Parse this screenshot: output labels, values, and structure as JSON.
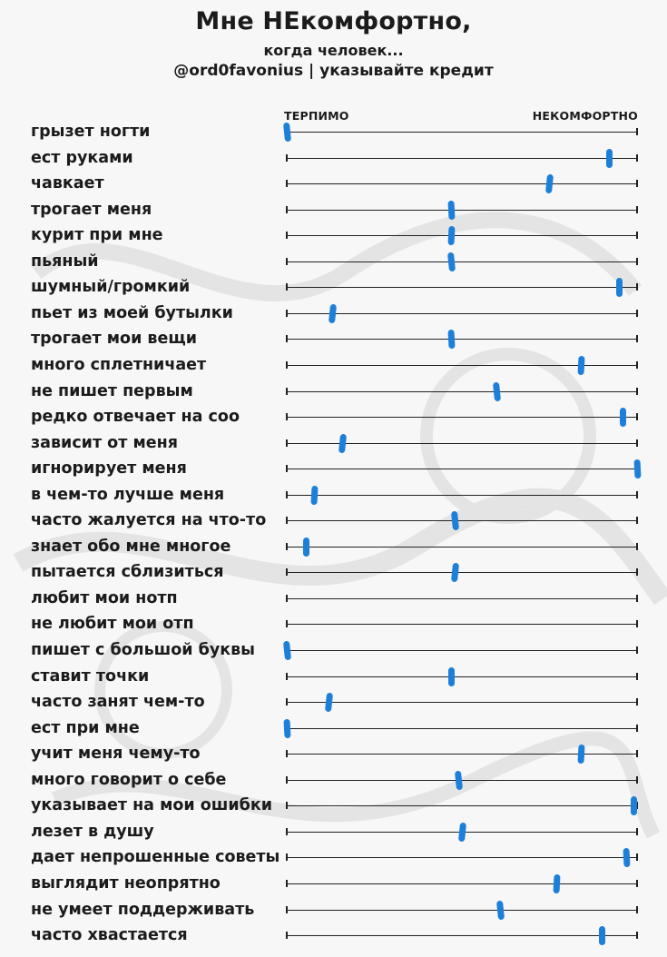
{
  "header": {
    "title": "Мне НЕкомфортно,",
    "subtitle": "когда человек...",
    "credit": "@ord0favonius | указывайте кредит"
  },
  "scale": {
    "min_label": "ТЕРПИМО",
    "max_label": "НЕКОМФОРТНО"
  },
  "colors": {
    "marker": "#1e7fd9",
    "line": "#222222",
    "background": "#f7f7f7"
  },
  "items": [
    {
      "label": "грызет ногти",
      "value": 0.0
    },
    {
      "label": "ест руками",
      "value": 0.92
    },
    {
      "label": "чавкает",
      "value": 0.75
    },
    {
      "label": "трогает меня",
      "value": 0.47
    },
    {
      "label": "курит при мне",
      "value": 0.47
    },
    {
      "label": "пьяный",
      "value": 0.47
    },
    {
      "label": "шумный/громкий",
      "value": 0.95
    },
    {
      "label": "пьет из моей бутылки",
      "value": 0.13
    },
    {
      "label": "трогает мои вещи",
      "value": 0.47
    },
    {
      "label": "много сплетничает",
      "value": 0.84
    },
    {
      "label": "не пишет первым",
      "value": 0.6
    },
    {
      "label": "редко отвечает на соо",
      "value": 0.96
    },
    {
      "label": "зависит от меня",
      "value": 0.16
    },
    {
      "label": "игнорирует меня",
      "value": 1.0
    },
    {
      "label": "в чем-то лучше меня",
      "value": 0.08
    },
    {
      "label": "часто жалуется на что-то",
      "value": 0.48
    },
    {
      "label": "знает обо мне многое",
      "value": 0.055
    },
    {
      "label": "пытается сблизиться",
      "value": 0.48
    },
    {
      "label": "любит мои нотп",
      "value": null
    },
    {
      "label": "не любит мои отп",
      "value": null
    },
    {
      "label": "пишет с большой буквы",
      "value": 0.0
    },
    {
      "label": "ставит точки",
      "value": 0.47
    },
    {
      "label": "часто занят чем-то",
      "value": 0.12
    },
    {
      "label": "ест при мне",
      "value": 0.0
    },
    {
      "label": "учит меня чему-то",
      "value": 0.84
    },
    {
      "label": "много говорит о себе",
      "value": 0.49
    },
    {
      "label": "указывает на мои ошибки",
      "value": 0.99
    },
    {
      "label": "лезет в душу",
      "value": 0.5
    },
    {
      "label": "дает непрошенные советы",
      "value": 0.97
    },
    {
      "label": "выглядит неопрятно",
      "value": 0.77
    },
    {
      "label": "не умеет поддерживать",
      "value": 0.61
    },
    {
      "label": "часто хвастается",
      "value": 0.9
    }
  ]
}
